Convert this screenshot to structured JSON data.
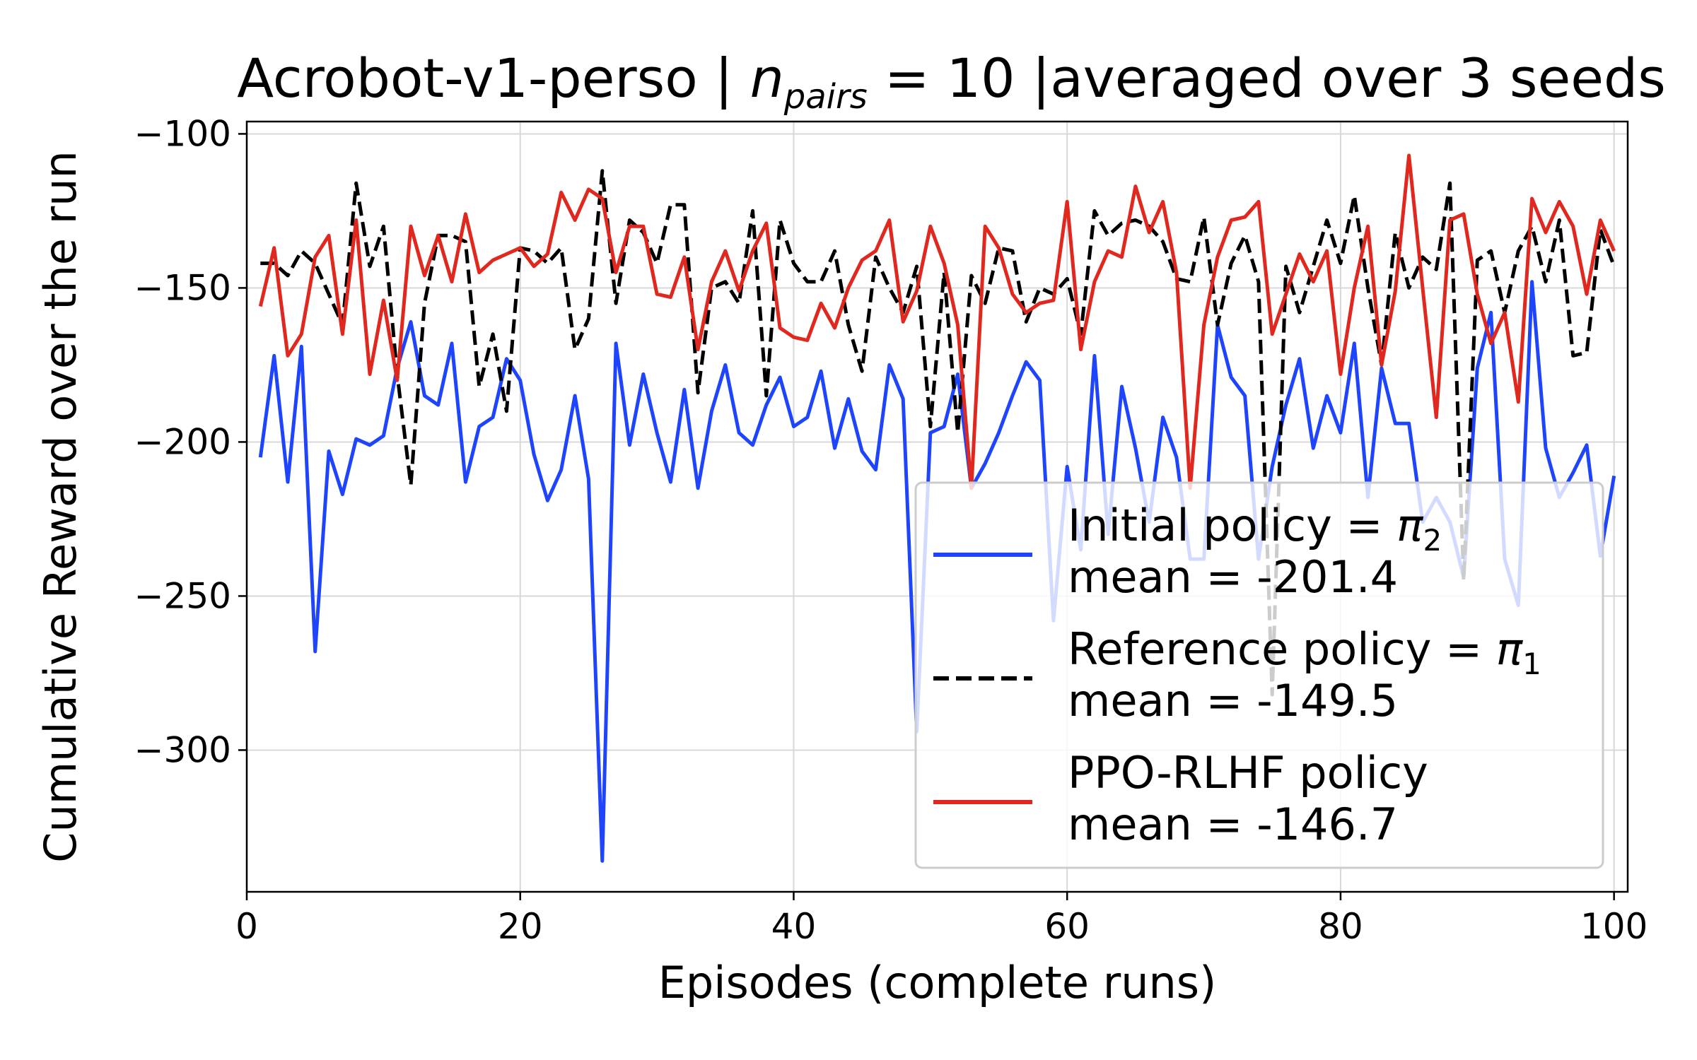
{
  "chart_data": {
    "type": "line",
    "title": "Acrobot-v1-perso | n_pairs = 10 |averaged over 3 seeds",
    "title_parts": {
      "prefix": "Acrobot-v1-perso | ",
      "var": "n",
      "sub": "pairs",
      "suffix": " = 10 |averaged over 3 seeds"
    },
    "xlabel": "Episodes (complete runs)",
    "ylabel": "Cumulative Reward over the run",
    "xlim": [
      0,
      101
    ],
    "ylim": [
      -346,
      -96
    ],
    "xticks": [
      0,
      20,
      40,
      60,
      80,
      100
    ],
    "yticks": [
      -100,
      -150,
      -200,
      -250,
      -300
    ],
    "ytick_labels": [
      "−100",
      "−150",
      "−200",
      "−250",
      "−300"
    ],
    "grid": true,
    "legend_position": "lower-right",
    "x": [
      1,
      2,
      3,
      4,
      5,
      6,
      7,
      8,
      9,
      10,
      11,
      12,
      13,
      14,
      15,
      16,
      17,
      18,
      19,
      20,
      21,
      22,
      23,
      24,
      25,
      26,
      27,
      28,
      29,
      30,
      31,
      32,
      33,
      34,
      35,
      36,
      37,
      38,
      39,
      40,
      41,
      42,
      43,
      44,
      45,
      46,
      47,
      48,
      49,
      50,
      51,
      52,
      53,
      54,
      55,
      56,
      57,
      58,
      59,
      60,
      61,
      62,
      63,
      64,
      65,
      66,
      67,
      68,
      69,
      70,
      71,
      72,
      73,
      74,
      75,
      76,
      77,
      78,
      79,
      80,
      81,
      82,
      83,
      84,
      85,
      86,
      87,
      88,
      89,
      90,
      91,
      92,
      93,
      94,
      95,
      96,
      97,
      98,
      99,
      100
    ],
    "series": [
      {
        "name": "Initial policy = π₂",
        "legend_line1_prefix": "Initial policy = ",
        "legend_var": "π",
        "legend_sub": "2",
        "legend_line2": " mean = -201.4",
        "color": "#1f45fc",
        "dash": "solid",
        "values": [
          -205,
          -172,
          -213,
          -169,
          -268,
          -203,
          -217,
          -199,
          -201,
          -198,
          -176,
          -161,
          -185,
          -188,
          -168,
          -213,
          -195,
          -192,
          -173,
          -180,
          -204,
          -219,
          -209,
          -185,
          -212,
          -336,
          -168,
          -201,
          -178,
          -197,
          -213,
          -183,
          -215,
          -190,
          -175,
          -197,
          -201,
          -188,
          -179,
          -195,
          -192,
          -177,
          -202,
          -186,
          -203,
          -209,
          -175,
          -186,
          -294,
          -197,
          -195,
          -178,
          -215,
          -207,
          -197,
          -185,
          -174,
          -180,
          -258,
          -208,
          -235,
          -172,
          -230,
          -182,
          -202,
          -226,
          -192,
          -205,
          -238,
          -238,
          -162,
          -179,
          -185,
          -238,
          -208,
          -188,
          -173,
          -202,
          -185,
          -197,
          -168,
          -218,
          -176,
          -194,
          -194,
          -226,
          -218,
          -226,
          -244,
          -176,
          -158,
          -238,
          -253,
          -148,
          -202,
          -218,
          -210,
          -201,
          -237,
          -211
        ]
      },
      {
        "name": "Reference policy = π₁",
        "legend_line1_prefix": "Reference policy = ",
        "legend_var": "π",
        "legend_sub": "1",
        "legend_line2": " mean = -149.5",
        "color": "#000000",
        "dash": "dashed",
        "values": [
          -142,
          -142,
          -146,
          -138,
          -142,
          -152,
          -162,
          -116,
          -143,
          -130,
          -178,
          -214,
          -155,
          -133,
          -133,
          -135,
          -182,
          -165,
          -190,
          -137,
          -138,
          -142,
          -137,
          -170,
          -160,
          -112,
          -155,
          -128,
          -132,
          -142,
          -123,
          -123,
          -184,
          -150,
          -148,
          -155,
          -125,
          -185,
          -128,
          -142,
          -148,
          -148,
          -138,
          -162,
          -177,
          -140,
          -150,
          -158,
          -143,
          -195,
          -145,
          -197,
          -146,
          -155,
          -137,
          -138,
          -161,
          -150,
          -152,
          -147,
          -165,
          -125,
          -133,
          -129,
          -128,
          -130,
          -135,
          -147,
          -148,
          -127,
          -162,
          -142,
          -133,
          -148,
          -282,
          -143,
          -158,
          -143,
          -128,
          -142,
          -120,
          -150,
          -175,
          -132,
          -150,
          -140,
          -144,
          -116,
          -245,
          -141,
          -138,
          -158,
          -138,
          -130,
          -148,
          -128,
          -172,
          -171,
          -131,
          -143
        ]
      },
      {
        "name": "PPO-RLHF policy",
        "legend_line1_prefix": "PPO-RLHF policy",
        "legend_var": "",
        "legend_sub": "",
        "legend_line2": " mean = -146.7",
        "color": "#e0281e",
        "dash": "solid",
        "values": [
          -156,
          -137,
          -172,
          -165,
          -140,
          -133,
          -165,
          -128,
          -178,
          -154,
          -180,
          -130,
          -146,
          -133,
          -148,
          -126,
          -145,
          -141,
          -139,
          -137,
          -143,
          -139,
          -119,
          -128,
          -118,
          -121,
          -145,
          -130,
          -130,
          -152,
          -153,
          -140,
          -170,
          -148,
          -138,
          -151,
          -138,
          -129,
          -163,
          -166,
          -167,
          -155,
          -163,
          -150,
          -141,
          -138,
          -128,
          -161,
          -151,
          -130,
          -142,
          -162,
          -215,
          -130,
          -137,
          -152,
          -158,
          -155,
          -154,
          -122,
          -170,
          -148,
          -138,
          -140,
          -117,
          -132,
          -122,
          -145,
          -215,
          -162,
          -140,
          -128,
          -127,
          -122,
          -165,
          -152,
          -139,
          -148,
          -138,
          -178,
          -150,
          -130,
          -175,
          -151,
          -107,
          -150,
          -192,
          -128,
          -126,
          -152,
          -168,
          -158,
          -187,
          -121,
          -132,
          -122,
          -130,
          -152,
          -128,
          -138
        ]
      }
    ]
  }
}
